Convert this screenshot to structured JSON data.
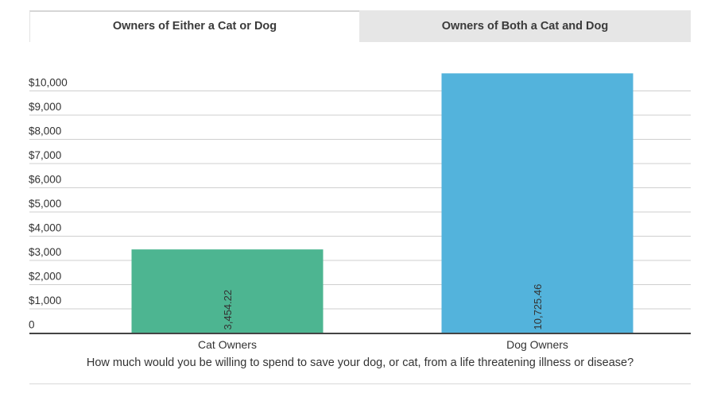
{
  "tabs": [
    {
      "label": "Owners of Either a Cat or Dog",
      "active": true
    },
    {
      "label": "Owners of Both a Cat and Dog",
      "active": false
    }
  ],
  "chart_data": {
    "type": "bar",
    "title": "",
    "xlabel": "How much would you be willing to spend to save your dog, or cat, from a life threatening illness or disease?",
    "ylabel": "",
    "categories": [
      "Cat Owners",
      "Dog Owners"
    ],
    "values": [
      3454.22,
      10725.46
    ],
    "value_labels": [
      "3,454.22",
      "10,725.46"
    ],
    "bar_colors": [
      "#4db591",
      "#53b3dc"
    ],
    "ylim": [
      0,
      10000
    ],
    "yticks": [
      0,
      1000,
      2000,
      3000,
      4000,
      5000,
      6000,
      7000,
      8000,
      9000,
      10000
    ],
    "ytick_labels": [
      "0",
      "$1,000",
      "$2,000",
      "$3,000",
      "$4,000",
      "$5,000",
      "$6,000",
      "$7,000",
      "$8,000",
      "$9,000",
      "$10,000"
    ],
    "grid": true,
    "legend": "none"
  }
}
